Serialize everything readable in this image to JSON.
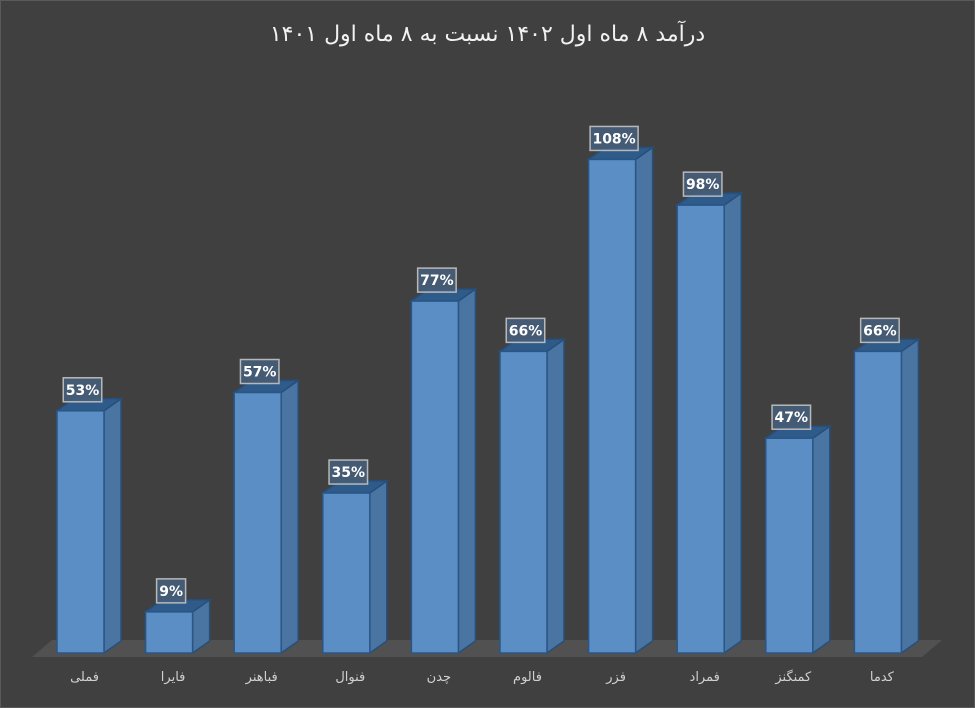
{
  "chart_data": {
    "type": "bar",
    "title": "درآمد ۸ ماه اول ۱۴۰۲ نسبت به ۸ ماه اول ۱۴۰۱",
    "categories": [
      "فملی",
      "فایرا",
      "فباهنر",
      "فنوال",
      "چدن",
      "فالوم",
      "فزر",
      "فمراد",
      "کمنگنز",
      "کدما"
    ],
    "values": [
      53,
      9,
      57,
      35,
      77,
      66,
      108,
      98,
      47,
      66
    ],
    "value_labels": [
      "53%",
      "9%",
      "57%",
      "35%",
      "77%",
      "66%",
      "108%",
      "98%",
      "47%",
      "66%"
    ],
    "xlabel": "",
    "ylabel": "",
    "unit": "%",
    "ylim": [
      0,
      110
    ],
    "grid": false,
    "legend": null,
    "style": "3d-column",
    "colors": {
      "bar": "#5b8ec4",
      "bar_side": "#4a75a3",
      "bar_top": "#2f5b8a",
      "background": "#404040",
      "floor": "#515151"
    }
  }
}
